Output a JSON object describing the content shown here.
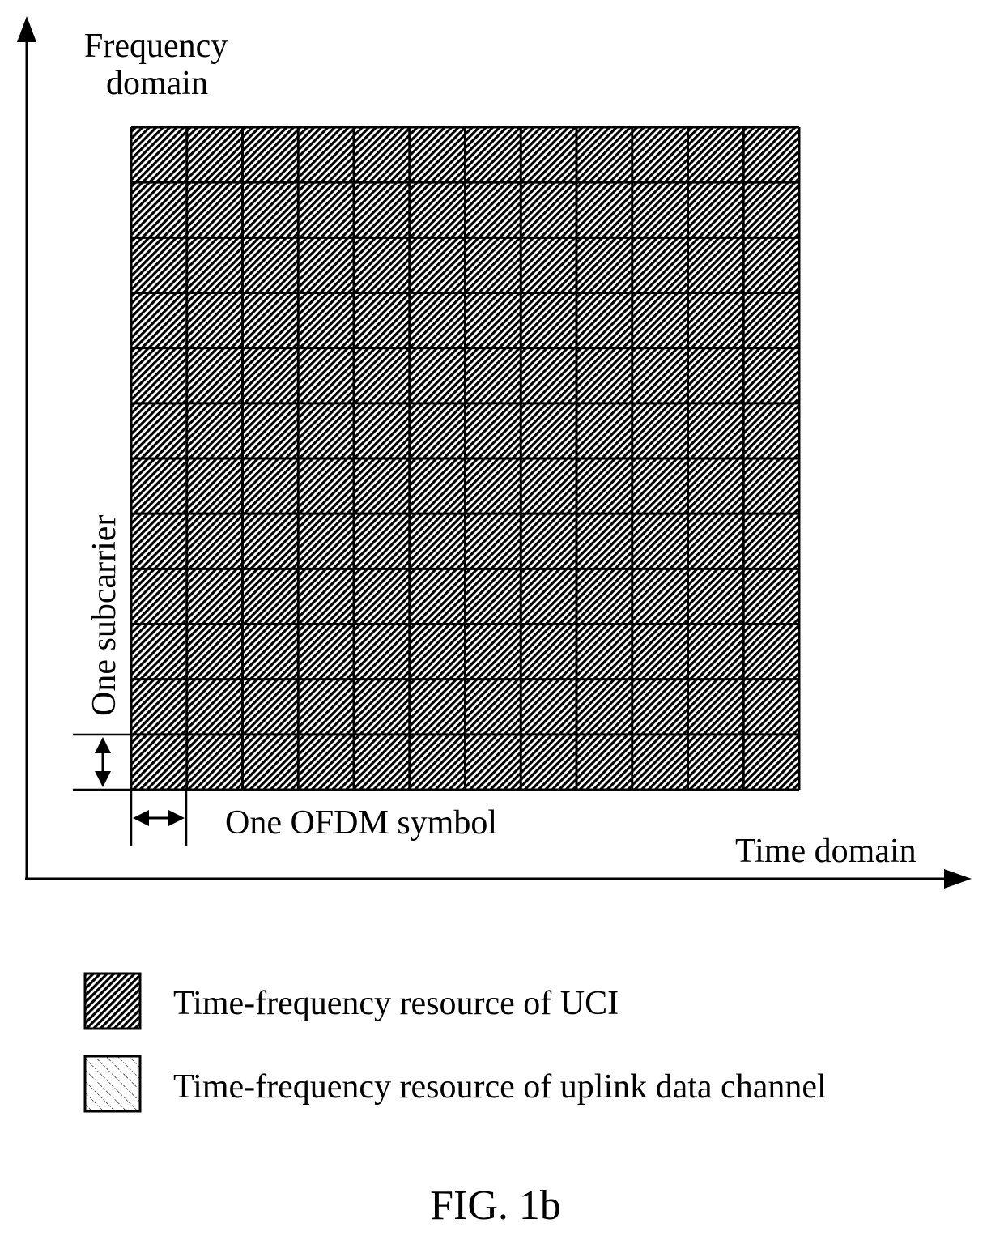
{
  "axes": {
    "y_label_line1": "Frequency",
    "y_label_line2": "domain",
    "x_label": "Time domain"
  },
  "grid": {
    "rows": 12,
    "cols": 12,
    "cell_fill": "uci"
  },
  "annotations": {
    "subcarrier": "One subcarrier",
    "ofdm_symbol": "One OFDM symbol"
  },
  "legend": {
    "items": [
      {
        "pattern": "uci",
        "label": "Time-frequency resource of UCI"
      },
      {
        "pattern": "data",
        "label": "Time-frequency resource of uplink data channel"
      }
    ]
  },
  "figure_caption": "FIG. 1b",
  "colors": {
    "stroke": "#000000",
    "background": "#ffffff"
  }
}
